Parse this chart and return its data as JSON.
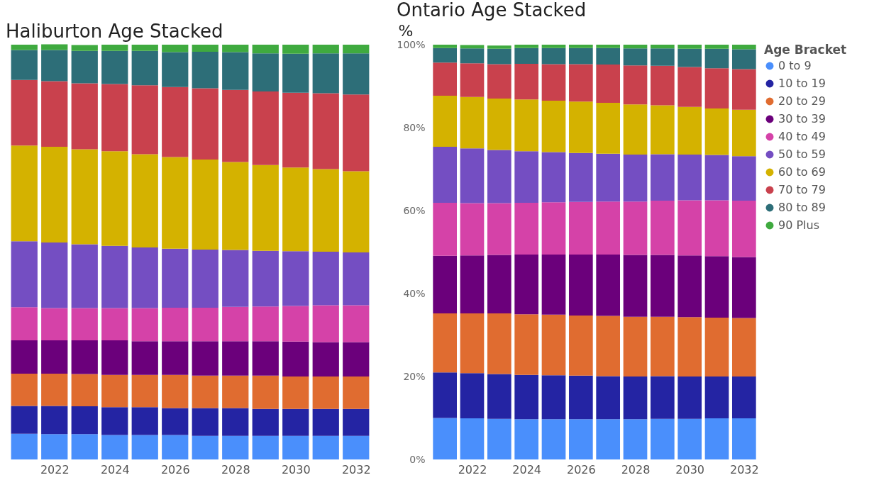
{
  "chart_data": [
    {
      "type": "bar",
      "title": "Haliburton Age Stacked",
      "stacked": true,
      "legend": false,
      "tick_labels": "x",
      "x": [
        2021,
        2022,
        2023,
        2024,
        2025,
        2026,
        2027,
        2028,
        2029,
        2030,
        2031,
        2032
      ],
      "xlim": [
        2020.5,
        2032.5
      ],
      "xticks": [
        2022,
        2024,
        2026,
        2028,
        2030,
        2032
      ],
      "ylim": [
        0,
        100
      ],
      "series": [
        {
          "color": "#4a8ffc",
          "values": [
            6.2,
            6.1,
            6.1,
            5.9,
            5.9,
            5.9,
            5.7,
            5.7,
            5.7,
            5.7,
            5.7,
            5.7
          ]
        },
        {
          "color": "#2424a3",
          "values": [
            6.7,
            6.8,
            6.7,
            6.7,
            6.7,
            6.5,
            6.7,
            6.7,
            6.5,
            6.5,
            6.5,
            6.5
          ]
        },
        {
          "color": "#e06c30",
          "values": [
            7.8,
            7.8,
            7.8,
            7.8,
            7.8,
            8.0,
            7.8,
            7.8,
            8.0,
            7.8,
            7.8,
            7.8
          ]
        },
        {
          "color": "#6b007b",
          "values": [
            8.0,
            8.0,
            8.1,
            8.3,
            8.1,
            8.1,
            8.3,
            8.3,
            8.3,
            8.4,
            8.3,
            8.3
          ]
        },
        {
          "color": "#d542a8",
          "values": [
            8.0,
            7.8,
            7.8,
            7.8,
            8.0,
            8.1,
            8.1,
            8.3,
            8.4,
            8.6,
            8.9,
            8.9
          ]
        },
        {
          "color": "#744ec2",
          "values": [
            15.9,
            15.8,
            15.4,
            15.0,
            14.6,
            14.2,
            14.0,
            13.7,
            13.4,
            13.2,
            12.9,
            12.7
          ]
        },
        {
          "color": "#d4b200",
          "values": [
            23.1,
            23.1,
            22.9,
            22.8,
            22.5,
            22.1,
            21.7,
            21.2,
            20.7,
            20.2,
            19.9,
            19.6
          ]
        },
        {
          "color": "#c9414d",
          "values": [
            15.8,
            15.8,
            15.9,
            16.2,
            16.6,
            16.9,
            17.2,
            17.4,
            17.7,
            18.0,
            18.3,
            18.5
          ]
        },
        {
          "color": "#2d6e78",
          "values": [
            7.2,
            7.5,
            7.8,
            8.0,
            8.3,
            8.4,
            8.8,
            9.1,
            9.2,
            9.4,
            9.6,
            9.9
          ]
        },
        {
          "color": "#3faa3f",
          "values": [
            1.3,
            1.4,
            1.4,
            1.5,
            1.5,
            1.8,
            1.7,
            1.8,
            2.1,
            2.2,
            2.1,
            2.1
          ]
        }
      ]
    },
    {
      "type": "bar",
      "title": "Ontario Age Stacked",
      "ylabel": "%",
      "stacked": true,
      "legend": "right",
      "legend_title": "Age Bracket",
      "x": [
        2021,
        2022,
        2023,
        2024,
        2025,
        2026,
        2027,
        2028,
        2029,
        2030,
        2031,
        2032
      ],
      "xlim": [
        2020.5,
        2032.5
      ],
      "xticks": [
        2022,
        2024,
        2026,
        2028,
        2030,
        2032
      ],
      "ylim": [
        0,
        100
      ],
      "yticks": [
        {
          "value": 0,
          "label": "0%"
        },
        {
          "value": 20,
          "label": "20%"
        },
        {
          "value": 40,
          "label": "40%"
        },
        {
          "value": 60,
          "label": "60%"
        },
        {
          "value": 80,
          "label": "80%"
        },
        {
          "value": 100,
          "label": "100%"
        }
      ],
      "series": [
        {
          "name": "0 to 9",
          "color": "#4a8ffc",
          "values": [
            10.0,
            9.9,
            9.8,
            9.7,
            9.7,
            9.7,
            9.7,
            9.7,
            9.8,
            9.8,
            9.9,
            9.9
          ]
        },
        {
          "name": "10 to 19",
          "color": "#2424a3",
          "values": [
            11.0,
            10.9,
            10.8,
            10.7,
            10.6,
            10.5,
            10.4,
            10.3,
            10.3,
            10.2,
            10.1,
            10.1
          ]
        },
        {
          "name": "20 to 29",
          "color": "#e06c30",
          "values": [
            14.2,
            14.4,
            14.6,
            14.6,
            14.6,
            14.5,
            14.5,
            14.4,
            14.3,
            14.3,
            14.2,
            14.1
          ]
        },
        {
          "name": "30 to 39",
          "color": "#6b007b",
          "values": [
            13.9,
            14.0,
            14.1,
            14.4,
            14.5,
            14.7,
            14.8,
            14.9,
            14.9,
            14.9,
            14.8,
            14.7
          ]
        },
        {
          "name": "40 to 49",
          "color": "#d542a8",
          "values": [
            12.8,
            12.6,
            12.5,
            12.5,
            12.6,
            12.7,
            12.8,
            12.9,
            13.1,
            13.3,
            13.5,
            13.6
          ]
        },
        {
          "name": "50 to 59",
          "color": "#744ec2",
          "values": [
            13.5,
            13.2,
            12.8,
            12.4,
            12.1,
            11.8,
            11.5,
            11.3,
            11.2,
            11.0,
            10.9,
            10.7
          ]
        },
        {
          "name": "60 to 69",
          "color": "#d4b200",
          "values": [
            12.3,
            12.4,
            12.4,
            12.5,
            12.4,
            12.4,
            12.3,
            12.1,
            11.8,
            11.5,
            11.2,
            11.2
          ]
        },
        {
          "name": "70 to 79",
          "color": "#c9414d",
          "values": [
            8.0,
            8.1,
            8.3,
            8.6,
            8.8,
            9.0,
            9.2,
            9.4,
            9.5,
            9.6,
            9.7,
            9.8
          ]
        },
        {
          "name": "80 to 89",
          "color": "#2d6e78",
          "values": [
            3.5,
            3.6,
            3.7,
            3.8,
            3.9,
            3.9,
            4.0,
            4.1,
            4.2,
            4.4,
            4.7,
            4.8
          ]
        },
        {
          "name": "90 Plus",
          "color": "#3faa3f",
          "values": [
            0.8,
            0.8,
            0.8,
            0.8,
            0.8,
            0.8,
            0.8,
            0.9,
            0.9,
            1.0,
            1.0,
            1.1
          ]
        }
      ]
    }
  ]
}
